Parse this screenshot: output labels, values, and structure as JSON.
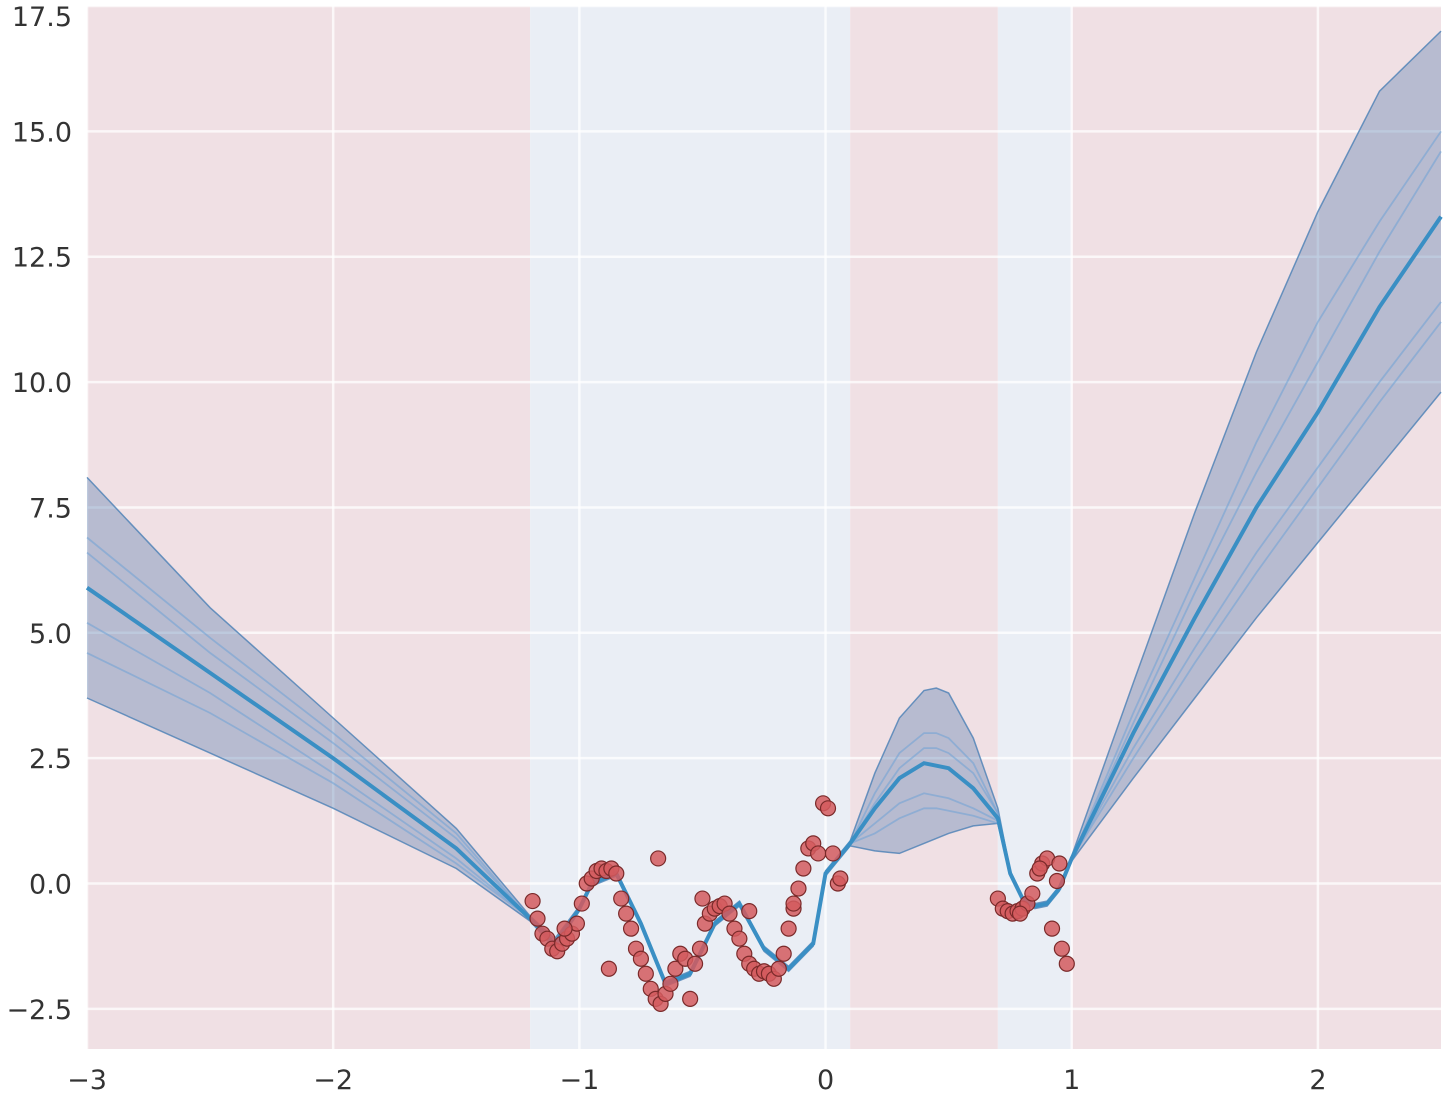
{
  "chart_data": {
    "type": "line",
    "title": "",
    "xlabel": "",
    "ylabel": "",
    "xlim": [
      -3,
      2.5
    ],
    "ylim": [
      -3.3,
      17.5
    ],
    "grid": true,
    "xticks": [
      {
        "value": -3,
        "label": "−3"
      },
      {
        "value": -2,
        "label": "−2"
      },
      {
        "value": -1,
        "label": "−1"
      },
      {
        "value": 0,
        "label": "0"
      },
      {
        "value": 1,
        "label": "1"
      },
      {
        "value": 2,
        "label": "2"
      }
    ],
    "yticks": [
      {
        "value": -2.5,
        "label": "−2.5"
      },
      {
        "value": 0.0,
        "label": "0.0"
      },
      {
        "value": 2.5,
        "label": "2.5"
      },
      {
        "value": 5.0,
        "label": "5.0"
      },
      {
        "value": 7.5,
        "label": "7.5"
      },
      {
        "value": 10.0,
        "label": "10.0"
      },
      {
        "value": 12.5,
        "label": "12.5"
      },
      {
        "value": 15.0,
        "label": "15.0"
      },
      {
        "value": 17.5,
        "label": "17.5"
      }
    ],
    "shaded_regions": [
      {
        "kind": "extrapolation",
        "x0": -3.0,
        "x1": -1.2
      },
      {
        "kind": "data",
        "x0": -1.2,
        "x1": 0.1
      },
      {
        "kind": "extrapolation",
        "x0": 0.1,
        "x1": 0.7
      },
      {
        "kind": "data",
        "x0": 0.7,
        "x1": 1.0
      },
      {
        "kind": "extrapolation",
        "x0": 1.0,
        "x1": 2.5
      }
    ],
    "x": [
      -3.0,
      -2.5,
      -2.0,
      -1.5,
      -1.2,
      -1.1,
      -1.0,
      -0.95,
      -0.85,
      -0.75,
      -0.65,
      -0.55,
      -0.45,
      -0.35,
      -0.25,
      -0.15,
      -0.05,
      0.0,
      0.1,
      0.2,
      0.3,
      0.4,
      0.45,
      0.5,
      0.6,
      0.7,
      0.75,
      0.8,
      0.85,
      0.9,
      0.95,
      1.0,
      1.25,
      1.5,
      1.75,
      2.0,
      2.25,
      2.5
    ],
    "series": [
      {
        "role": "mean",
        "values": [
          5.9,
          4.2,
          2.5,
          0.7,
          -0.7,
          -1.2,
          -0.5,
          0.0,
          0.2,
          -0.8,
          -2.0,
          -1.8,
          -0.8,
          -0.4,
          -1.3,
          -1.7,
          -1.2,
          0.2,
          0.8,
          1.5,
          2.1,
          2.4,
          2.35,
          2.3,
          1.9,
          1.3,
          0.2,
          -0.3,
          -0.45,
          -0.4,
          -0.1,
          0.5,
          3.0,
          5.3,
          7.5,
          9.4,
          11.5,
          13.3
        ]
      },
      {
        "role": "sample",
        "values": [
          6.6,
          4.6,
          2.8,
          0.9,
          -0.7,
          -1.2,
          -0.5,
          0.0,
          0.2,
          -0.8,
          -2.0,
          -1.8,
          -0.8,
          -0.4,
          -1.3,
          -1.7,
          -1.2,
          0.2,
          0.8,
          1.8,
          2.6,
          3.0,
          3.0,
          2.9,
          2.4,
          1.4,
          0.2,
          -0.3,
          -0.45,
          -0.4,
          -0.1,
          0.5,
          3.4,
          6.1,
          8.8,
          11.2,
          13.2,
          15.0
        ]
      },
      {
        "role": "sample",
        "values": [
          5.2,
          3.8,
          2.2,
          0.5,
          -0.7,
          -1.2,
          -0.5,
          0.0,
          0.2,
          -0.8,
          -2.0,
          -1.8,
          -0.8,
          -0.4,
          -1.3,
          -1.7,
          -1.2,
          0.2,
          0.8,
          1.2,
          1.6,
          1.8,
          1.75,
          1.7,
          1.5,
          1.25,
          0.2,
          -0.3,
          -0.45,
          -0.4,
          -0.1,
          0.5,
          2.7,
          4.7,
          6.6,
          8.3,
          10.0,
          11.6
        ]
      },
      {
        "role": "sample",
        "values": [
          6.9,
          4.9,
          3.0,
          1.0,
          -0.7,
          -1.2,
          -0.5,
          0.0,
          0.2,
          -0.8,
          -2.0,
          -1.8,
          -0.8,
          -0.4,
          -1.3,
          -1.7,
          -1.2,
          0.2,
          0.8,
          1.6,
          2.3,
          2.7,
          2.7,
          2.6,
          2.2,
          1.4,
          0.2,
          -0.3,
          -0.45,
          -0.4,
          -0.1,
          0.5,
          3.2,
          5.8,
          8.2,
          10.4,
          12.6,
          14.6
        ]
      },
      {
        "role": "sample",
        "values": [
          4.6,
          3.4,
          2.0,
          0.4,
          -0.7,
          -1.2,
          -0.5,
          0.0,
          0.2,
          -0.8,
          -2.0,
          -1.8,
          -0.8,
          -0.4,
          -1.3,
          -1.7,
          -1.2,
          0.2,
          0.8,
          1.0,
          1.3,
          1.5,
          1.5,
          1.45,
          1.35,
          1.2,
          0.2,
          -0.3,
          -0.45,
          -0.4,
          -0.1,
          0.5,
          2.5,
          4.4,
          6.2,
          7.9,
          9.6,
          11.2
        ]
      }
    ],
    "band": {
      "upper": [
        8.1,
        5.5,
        3.3,
        1.1,
        -0.65,
        -1.1,
        -0.45,
        0.05,
        0.25,
        -0.75,
        -1.95,
        -1.75,
        -0.75,
        -0.35,
        -1.25,
        -1.65,
        -1.15,
        0.25,
        0.85,
        2.2,
        3.3,
        3.85,
        3.9,
        3.8,
        2.9,
        1.5,
        0.25,
        -0.25,
        -0.4,
        -0.35,
        -0.05,
        0.55,
        4.0,
        7.4,
        10.6,
        13.4,
        15.8,
        17.0
      ],
      "lower": [
        3.7,
        2.6,
        1.5,
        0.3,
        -0.75,
        -1.3,
        -0.55,
        -0.05,
        0.15,
        -0.85,
        -2.05,
        -1.85,
        -0.85,
        -0.45,
        -1.35,
        -1.75,
        -1.25,
        0.15,
        0.75,
        0.65,
        0.6,
        0.8,
        0.9,
        1.0,
        1.15,
        1.2,
        0.15,
        -0.35,
        -0.5,
        -0.45,
        -0.15,
        0.45,
        2.1,
        3.7,
        5.3,
        6.8,
        8.3,
        9.8
      ]
    },
    "observations": {
      "x": [
        -1.19,
        -1.17,
        -1.15,
        -1.13,
        -1.11,
        -1.09,
        -1.07,
        -1.05,
        -1.03,
        -1.01,
        -0.99,
        -0.97,
        -0.95,
        -0.93,
        -0.91,
        -0.89,
        -0.87,
        -0.85,
        -0.83,
        -0.81,
        -0.79,
        -0.77,
        -0.75,
        -0.73,
        -0.71,
        -0.69,
        -0.67,
        -0.65,
        -0.63,
        -0.61,
        -0.59,
        -0.57,
        -0.55,
        -0.53,
        -0.51,
        -0.49,
        -0.47,
        -0.45,
        -0.43,
        -0.41,
        -0.39,
        -0.37,
        -0.35,
        -0.33,
        -0.31,
        -0.29,
        -0.27,
        -0.25,
        -0.23,
        -0.21,
        -0.19,
        -0.17,
        -0.15,
        -0.13,
        -0.11,
        -0.09,
        -0.07,
        -0.05,
        -0.03,
        -0.01,
        0.01,
        0.03,
        0.05,
        0.7,
        0.72,
        0.74,
        0.76,
        0.78,
        0.8,
        0.82,
        0.84,
        0.86,
        0.88,
        0.9,
        0.92,
        0.94,
        0.96,
        0.98,
        -1.06,
        -0.88,
        -0.68,
        -0.5,
        -0.31,
        -0.13,
        0.06,
        0.79,
        0.87,
        0.95
      ],
      "y": [
        -0.35,
        -0.7,
        -1.0,
        -1.1,
        -1.3,
        -1.35,
        -1.2,
        -1.1,
        -1.0,
        -0.8,
        -0.4,
        0.0,
        0.1,
        0.25,
        0.3,
        0.25,
        0.3,
        0.2,
        -0.3,
        -0.6,
        -0.9,
        -1.3,
        -1.5,
        -1.8,
        -2.1,
        -2.3,
        -2.4,
        -2.2,
        -2.0,
        -1.7,
        -1.4,
        -1.5,
        -2.3,
        -1.6,
        -1.3,
        -0.8,
        -0.6,
        -0.5,
        -0.45,
        -0.4,
        -0.6,
        -0.9,
        -1.1,
        -1.4,
        -1.6,
        -1.7,
        -1.8,
        -1.75,
        -1.8,
        -1.9,
        -1.7,
        -1.4,
        -0.9,
        -0.5,
        -0.1,
        0.3,
        0.7,
        0.8,
        0.6,
        1.6,
        1.5,
        0.6,
        0.0,
        -0.3,
        -0.5,
        -0.55,
        -0.6,
        -0.55,
        -0.5,
        -0.4,
        -0.2,
        0.2,
        0.4,
        0.5,
        -0.9,
        0.05,
        -1.3,
        -1.6,
        -0.9,
        -1.7,
        0.5,
        -0.3,
        -0.55,
        -0.4,
        0.1,
        -0.6,
        0.3,
        0.4
      ]
    }
  }
}
